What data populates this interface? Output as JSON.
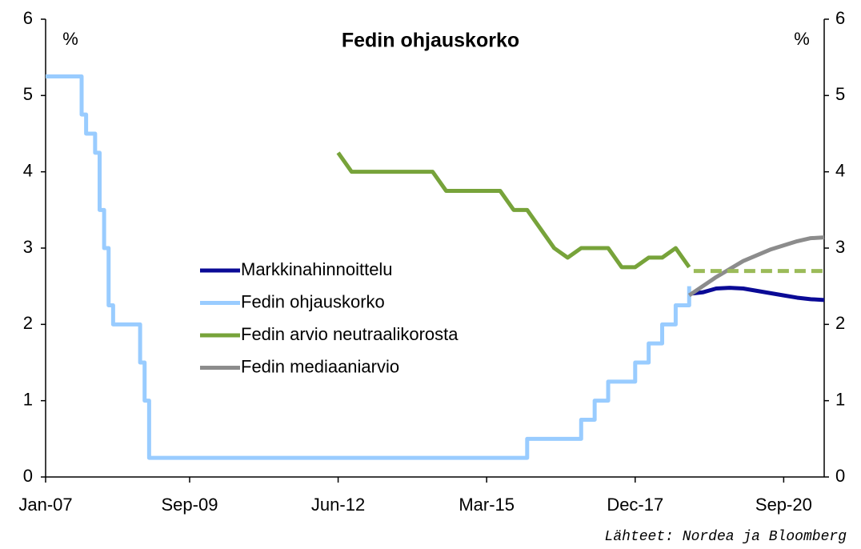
{
  "chart_data": {
    "type": "line",
    "title": "Fedin ohjauskorko",
    "y_label": "%",
    "y2_label": "%",
    "source": "Lähteet: Nordea ja Bloomberg",
    "xlim": [
      "2007-01",
      "2021-06"
    ],
    "xticks": [
      {
        "value": "2007-01",
        "label": "Jan-07"
      },
      {
        "value": "2009-09",
        "label": "Sep-09"
      },
      {
        "value": "2012-06",
        "label": "Jun-12"
      },
      {
        "value": "2015-03",
        "label": "Mar-15"
      },
      {
        "value": "2017-12",
        "label": "Dec-17"
      },
      {
        "value": "2020-09",
        "label": "Sep-20"
      }
    ],
    "ylim": [
      0,
      6
    ],
    "yticks": [
      0,
      1,
      2,
      3,
      4,
      5,
      6
    ],
    "y2lim": [
      0,
      6
    ],
    "y2ticks": [
      0,
      1,
      2,
      3,
      4,
      5,
      6
    ],
    "legend": "center-left",
    "series": [
      {
        "name": "Markkinahinnoittelu",
        "color": "#0a0a96",
        "x": [
          "2018-12",
          "2019-03",
          "2019-06",
          "2019-09",
          "2019-12",
          "2020-03",
          "2020-06",
          "2020-09",
          "2020-12",
          "2021-03",
          "2021-06"
        ],
        "values": [
          2.4,
          2.42,
          2.47,
          2.48,
          2.47,
          2.44,
          2.41,
          2.38,
          2.35,
          2.33,
          2.32
        ]
      },
      {
        "name": "Fedin ohjauskorko",
        "color": "#99ccff",
        "step": true,
        "x": [
          "2007-01",
          "2007-09",
          "2007-10",
          "2007-12",
          "2008-01",
          "2008-02",
          "2008-03",
          "2008-04",
          "2008-10",
          "2008-11",
          "2008-12",
          "2015-12",
          "2016-12",
          "2017-03",
          "2017-06",
          "2017-12",
          "2018-03",
          "2018-06",
          "2018-09",
          "2018-12"
        ],
        "values": [
          5.25,
          4.75,
          4.5,
          4.25,
          3.5,
          3.0,
          2.25,
          2.0,
          1.5,
          1.0,
          0.25,
          0.5,
          0.75,
          1.0,
          1.25,
          1.5,
          1.75,
          2.0,
          2.25,
          2.5
        ]
      },
      {
        "name": "Fedin arvio neutraalikorosta",
        "color": "#77a33a",
        "x": [
          "2012-06",
          "2012-09",
          "2014-03",
          "2014-06",
          "2015-06",
          "2015-09",
          "2015-12",
          "2016-06",
          "2016-09",
          "2016-12",
          "2017-06",
          "2017-09",
          "2017-12",
          "2018-03",
          "2018-06",
          "2018-09",
          "2018-12"
        ],
        "values": [
          4.25,
          4.0,
          4.0,
          3.75,
          3.75,
          3.5,
          3.5,
          3.0,
          2.875,
          3.0,
          3.0,
          2.75,
          2.75,
          2.875,
          2.875,
          3.0,
          2.75
        ]
      },
      {
        "name": "Fedin mediaaniarvio",
        "color": "#8c8c8c",
        "x": [
          "2018-12",
          "2019-06",
          "2019-12",
          "2020-06",
          "2020-12",
          "2021-03",
          "2021-06"
        ],
        "values": [
          2.38,
          2.62,
          2.83,
          2.98,
          3.09,
          3.13,
          3.14
        ]
      },
      {
        "color": "#9bbb59",
        "dash": true,
        "x": [
          "2019-01",
          "2021-06"
        ],
        "values": [
          2.7,
          2.7
        ]
      }
    ]
  }
}
